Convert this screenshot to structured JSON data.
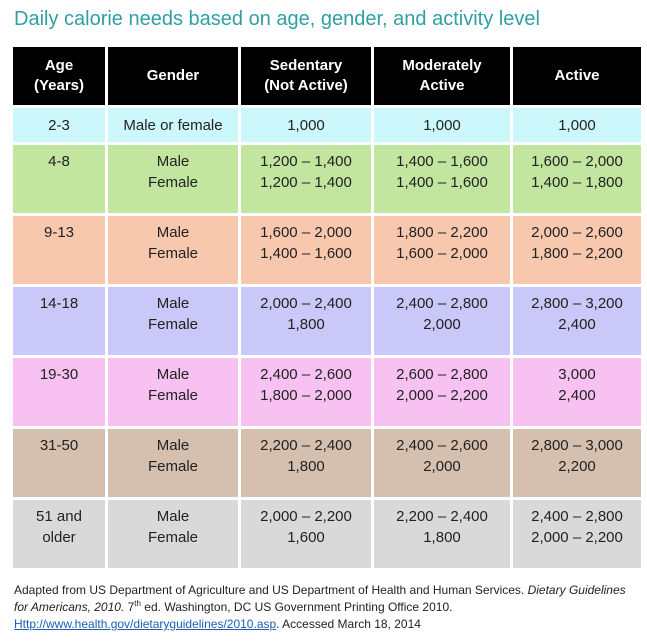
{
  "title": "Daily calorie needs based on age, gender, and activity level",
  "colors": {
    "title": "#2f9fa3",
    "header_bg": "#000000",
    "row_colors": [
      "#ccf8fb",
      "#c2e59f",
      "#f8c8ae",
      "#c9c8f8",
      "#f7c2f2",
      "#d5bfae",
      "#d9d9d9"
    ]
  },
  "table": {
    "headers": {
      "age": [
        "Age",
        "(Years)"
      ],
      "gender": [
        "Gender"
      ],
      "sedentary": [
        "Sedentary",
        "(Not Active)"
      ],
      "moderate": [
        "Moderately",
        "Active"
      ],
      "active": [
        "Active"
      ]
    },
    "rows": [
      {
        "age": [
          "2-3"
        ],
        "gender": [
          "Male or female"
        ],
        "sedentary": [
          "1,000"
        ],
        "moderate": [
          "1,000"
        ],
        "active": [
          "1,000"
        ]
      },
      {
        "age": [
          "4-8"
        ],
        "gender": [
          "Male",
          "Female"
        ],
        "sedentary": [
          "1,200 – 1,400",
          "1,200 – 1,400"
        ],
        "moderate": [
          "1,400 – 1,600",
          "1,400 – 1,600"
        ],
        "active": [
          "1,600 – 2,000",
          "1,400 – 1,800"
        ]
      },
      {
        "age": [
          "9-13"
        ],
        "gender": [
          "Male",
          "Female"
        ],
        "sedentary": [
          "1,600 – 2,000",
          "1,400 – 1,600"
        ],
        "moderate": [
          "1,800 – 2,200",
          "1,600 – 2,000"
        ],
        "active": [
          "2,000 – 2,600",
          "1,800 – 2,200"
        ]
      },
      {
        "age": [
          "14-18"
        ],
        "gender": [
          "Male",
          "Female"
        ],
        "sedentary": [
          "2,000 – 2,400",
          "1,800"
        ],
        "moderate": [
          "2,400 – 2,800",
          "2,000"
        ],
        "active": [
          "2,800 – 3,200",
          "2,400"
        ]
      },
      {
        "age": [
          "19-30"
        ],
        "gender": [
          "Male",
          "Female"
        ],
        "sedentary": [
          "2,400 – 2,600",
          "1,800 – 2,000"
        ],
        "moderate": [
          "2,600 – 2,800",
          "2,000 – 2,200"
        ],
        "active": [
          "3,000",
          "2,400"
        ]
      },
      {
        "age": [
          "31-50"
        ],
        "gender": [
          "Male",
          "Female"
        ],
        "sedentary": [
          "2,200 – 2,400",
          "1,800"
        ],
        "moderate": [
          "2,400 – 2,600",
          "2,000"
        ],
        "active": [
          "2,800 – 3,000",
          "2,200"
        ]
      },
      {
        "age": [
          "51 and",
          "older"
        ],
        "gender": [
          "Male",
          "Female"
        ],
        "sedentary": [
          "2,000 – 2,200",
          "1,600"
        ],
        "moderate": [
          "2,200 – 2,400",
          "1,800"
        ],
        "active": [
          "2,400 – 2,800",
          "2,000 – 2,200"
        ]
      }
    ]
  },
  "footer": {
    "text1": "Adapted from US Department of Agriculture and US Department of Health and Human Services. ",
    "italic": "Dietary Guidelines for Americans, 2010.",
    "text2": " 7",
    "sup": "th",
    "text3": " ed. Washington, DC US Government Printing Office 2010.",
    "link": "Http://www.health.gov/dietaryguidelines/2010.asp",
    "text4": ". Accessed March 18, 2014"
  }
}
